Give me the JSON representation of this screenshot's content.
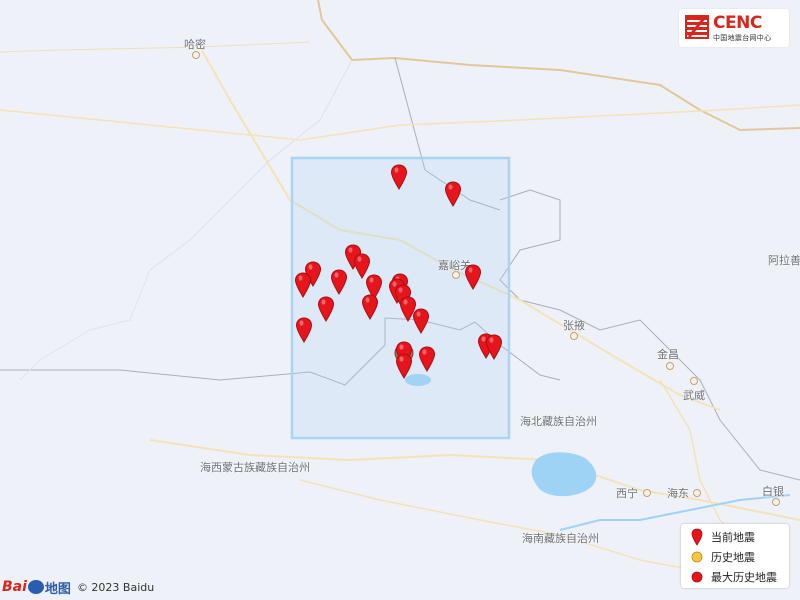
{
  "logo": {
    "brand": "CENC",
    "subtitle": "中国地震台网中心"
  },
  "places": {
    "hami": "哈密",
    "jiayuguan": "嘉峪关",
    "zhangye": "张掖",
    "jinchang": "金昌",
    "wuwei": "武威",
    "alashan": "阿拉善",
    "haibei": "海北藏族自治州",
    "haixi": "海西蒙古族藏族自治州",
    "xining": "西宁",
    "haidong": "海东",
    "baiyin": "白银",
    "hainan": "海南藏族自治州"
  },
  "legend": {
    "current": "当前地震",
    "historical": "历史地震",
    "max_historical": "最大历史地震"
  },
  "attribution": {
    "brand_bai": "Bai",
    "brand_ditu": "地图",
    "copyright": "© 2023 Baidu"
  },
  "colors": {
    "pin": "#e8141b",
    "pin_stroke": "#a80f14",
    "history": "#f5c842",
    "max_history": "#e8141b",
    "study_area": "#aad3f5"
  },
  "map": {
    "historical_earthquake_count": 22,
    "max_historical_count": 1,
    "current_earthquake_count": 1
  }
}
